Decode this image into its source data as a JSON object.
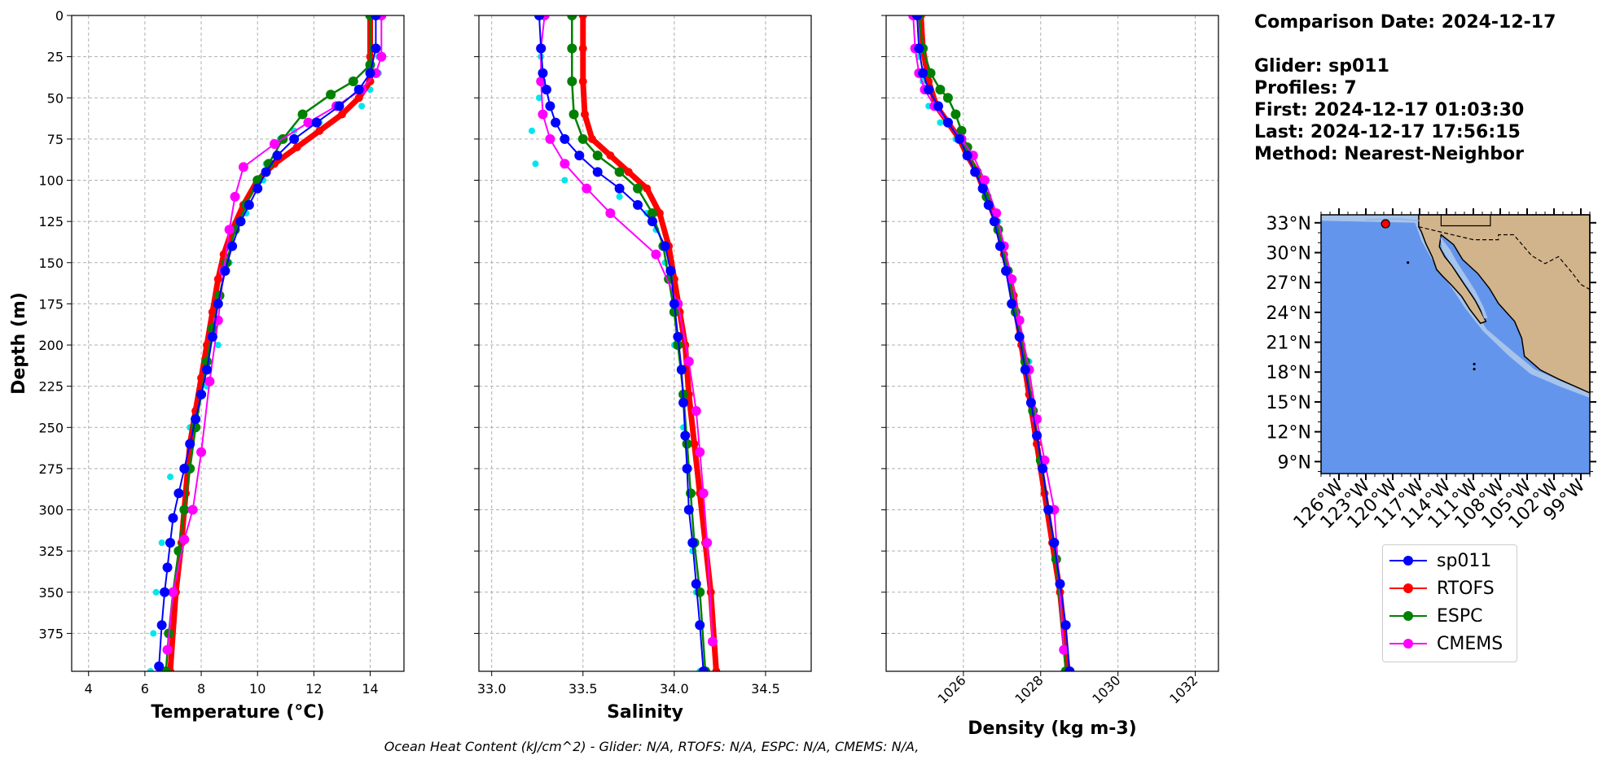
{
  "chart_data": [
    {
      "type": "line",
      "xlabel": "Temperature (°C)",
      "ylabel": "Depth (m)",
      "xlim": [
        3.4,
        15.2
      ],
      "ylim": [
        0,
        398
      ],
      "xticks": [
        "4",
        "6",
        "8",
        "10",
        "12",
        "14"
      ],
      "yticks": [
        "0",
        "25",
        "50",
        "75",
        "100",
        "125",
        "150",
        "175",
        "200",
        "225",
        "250",
        "275",
        "300",
        "325",
        "350",
        "375"
      ],
      "grid": true,
      "series": [
        {
          "name": "sp011",
          "color": "#0000ff",
          "x": [
            14.2,
            14.2,
            14.0,
            13.6,
            12.9,
            12.1,
            11.3,
            10.7,
            10.3,
            10.0,
            9.7,
            9.4,
            9.1,
            8.85,
            8.6,
            8.4,
            8.2,
            8.0,
            7.8,
            7.6,
            7.4,
            7.2,
            7.0,
            6.9,
            6.8,
            6.7,
            6.6,
            6.5
          ],
          "y": [
            0,
            20,
            35,
            45,
            55,
            65,
            75,
            85,
            95,
            105,
            115,
            125,
            140,
            155,
            175,
            195,
            215,
            230,
            245,
            260,
            275,
            290,
            305,
            320,
            335,
            350,
            370,
            395
          ]
        },
        {
          "name": "RTOFS",
          "color": "#ff0000",
          "x": [
            14.0,
            14.0,
            14.0,
            13.6,
            13.0,
            12.2,
            11.4,
            10.6,
            10.0,
            9.5,
            9.1,
            8.8,
            8.6,
            8.4,
            8.2,
            8.0,
            7.8,
            7.6,
            7.45,
            7.3,
            7.1,
            6.9
          ],
          "y": [
            0,
            25,
            40,
            50,
            60,
            70,
            80,
            90,
            100,
            115,
            130,
            145,
            160,
            180,
            200,
            220,
            240,
            260,
            290,
            320,
            350,
            398
          ]
        },
        {
          "name": "ESPC",
          "color": "#008000",
          "x": [
            14.0,
            14.0,
            13.4,
            12.6,
            11.6,
            10.9,
            10.4,
            10.0,
            9.6,
            9.2,
            8.9,
            8.65,
            8.4,
            8.2,
            8.0,
            7.8,
            7.6,
            7.4,
            7.2,
            7.0,
            6.85,
            6.75
          ],
          "y": [
            0,
            30,
            40,
            48,
            60,
            75,
            90,
            100,
            115,
            130,
            150,
            170,
            190,
            210,
            230,
            250,
            275,
            300,
            325,
            350,
            375,
            398
          ]
        },
        {
          "name": "CMEMS",
          "color": "#ff00ff",
          "x": [
            14.4,
            14.4,
            14.2,
            13.7,
            12.8,
            11.8,
            10.6,
            9.5,
            9.2,
            9.0,
            8.8,
            8.6,
            8.3,
            8.0,
            7.7,
            7.4,
            7.0,
            6.8
          ],
          "y": [
            0,
            25,
            35,
            45,
            55,
            65,
            78,
            92,
            110,
            130,
            155,
            185,
            222,
            265,
            300,
            318,
            350,
            385
          ]
        },
        {
          "name": "",
          "color": "#00e5ee",
          "dotted": true,
          "x": [
            14.3,
            14.3,
            14.3,
            14.0,
            13.7,
            12.2,
            11.3,
            10.8,
            10.3,
            10.2,
            9.6,
            9.0,
            8.6,
            8.2,
            7.6,
            6.9,
            6.6,
            6.4,
            6.3,
            6.2
          ],
          "y": [
            0,
            25,
            35,
            45,
            55,
            65,
            70,
            75,
            90,
            100,
            120,
            150,
            200,
            225,
            250,
            280,
            320,
            350,
            375,
            398
          ]
        }
      ]
    },
    {
      "type": "line",
      "xlabel": "Salinity",
      "ylabel": "",
      "xlim": [
        32.93,
        34.75
      ],
      "ylim": [
        0,
        398
      ],
      "xticks": [
        "33.0",
        "33.5",
        "34.0",
        "34.5"
      ],
      "grid": true,
      "series": [
        {
          "name": "sp011",
          "color": "#0000ff",
          "x": [
            33.26,
            33.27,
            33.28,
            33.3,
            33.32,
            33.35,
            33.4,
            33.48,
            33.58,
            33.7,
            33.8,
            33.88,
            33.95,
            33.98,
            34.0,
            34.02,
            34.04,
            34.05,
            34.06,
            34.07,
            34.08,
            34.1,
            34.12,
            34.14,
            34.16
          ],
          "y": [
            0,
            20,
            35,
            45,
            55,
            65,
            75,
            85,
            95,
            105,
            115,
            125,
            140,
            155,
            175,
            195,
            215,
            235,
            255,
            275,
            300,
            320,
            345,
            370,
            398
          ]
        },
        {
          "name": "RTOFS",
          "color": "#ff0000",
          "x": [
            33.5,
            33.5,
            33.5,
            33.51,
            33.55,
            33.65,
            33.75,
            33.85,
            33.92,
            33.97,
            34.0,
            34.03,
            34.06,
            34.08,
            34.11,
            34.14,
            34.17,
            34.2,
            34.23
          ],
          "y": [
            0,
            20,
            40,
            60,
            75,
            85,
            95,
            105,
            120,
            140,
            160,
            180,
            200,
            230,
            260,
            290,
            320,
            350,
            398
          ]
        },
        {
          "name": "ESPC",
          "color": "#008000",
          "x": [
            33.44,
            33.44,
            33.44,
            33.45,
            33.5,
            33.58,
            33.7,
            33.8,
            33.88,
            33.94,
            33.97,
            34.0,
            34.02,
            34.05,
            34.07,
            34.09,
            34.11,
            34.14,
            34.17
          ],
          "y": [
            0,
            20,
            40,
            60,
            75,
            85,
            95,
            105,
            120,
            140,
            160,
            180,
            200,
            230,
            260,
            290,
            320,
            350,
            398
          ]
        },
        {
          "name": "CMEMS",
          "color": "#ff00ff",
          "x": [
            33.29,
            33.27,
            33.27,
            33.28,
            33.32,
            33.4,
            33.52,
            33.65,
            33.9,
            34.02,
            34.08,
            34.12,
            34.14,
            34.16,
            34.18,
            34.21
          ],
          "y": [
            0,
            20,
            40,
            60,
            75,
            90,
            105,
            120,
            145,
            175,
            210,
            240,
            265,
            290,
            320,
            380
          ]
        },
        {
          "name": "",
          "color": "#00e5ee",
          "dotted": true,
          "x": [
            33.27,
            33.27,
            33.26,
            33.22,
            33.24,
            33.4,
            33.7,
            33.85,
            33.9,
            33.95,
            34.0,
            34.05,
            34.08,
            34.08,
            34.1,
            34.12,
            34.14
          ],
          "y": [
            0,
            25,
            50,
            70,
            90,
            100,
            110,
            120,
            130,
            150,
            200,
            250,
            275,
            300,
            325,
            350,
            398
          ]
        }
      ]
    },
    {
      "type": "line",
      "xlabel": "Density (kg m-3)",
      "ylabel": "",
      "xlim": [
        1024.0,
        1032.6
      ],
      "ylim": [
        0,
        398
      ],
      "xticks": [
        "1026",
        "1028",
        "1030",
        "1032"
      ],
      "grid": true,
      "series": [
        {
          "name": "sp011",
          "color": "#0000ff",
          "x": [
            1024.8,
            1024.85,
            1024.95,
            1025.1,
            1025.35,
            1025.6,
            1025.9,
            1026.1,
            1026.3,
            1026.5,
            1026.65,
            1026.8,
            1026.95,
            1027.1,
            1027.25,
            1027.45,
            1027.6,
            1027.75,
            1027.9,
            1028.05,
            1028.2,
            1028.35,
            1028.5,
            1028.65,
            1028.75
          ],
          "y": [
            0,
            20,
            35,
            45,
            55,
            65,
            75,
            85,
            95,
            105,
            115,
            125,
            140,
            155,
            175,
            195,
            215,
            235,
            255,
            275,
            300,
            320,
            345,
            370,
            398
          ]
        },
        {
          "name": "RTOFS",
          "color": "#ff0000",
          "x": [
            1024.9,
            1024.95,
            1025.1,
            1025.3,
            1025.6,
            1025.9,
            1026.1,
            1026.35,
            1026.6,
            1026.85,
            1027.05,
            1027.3,
            1027.5,
            1027.7,
            1027.9,
            1028.1,
            1028.3,
            1028.5,
            1028.7
          ],
          "y": [
            0,
            20,
            40,
            55,
            65,
            75,
            85,
            95,
            110,
            125,
            145,
            170,
            200,
            230,
            260,
            290,
            320,
            350,
            398
          ]
        },
        {
          "name": "ESPC",
          "color": "#008000",
          "x": [
            1024.85,
            1024.95,
            1025.15,
            1025.4,
            1025.6,
            1025.8,
            1025.95,
            1026.1,
            1026.35,
            1026.6,
            1026.9,
            1027.15,
            1027.35,
            1027.6,
            1027.8,
            1028.0,
            1028.2,
            1028.4,
            1028.65
          ],
          "y": [
            0,
            20,
            35,
            45,
            50,
            60,
            70,
            80,
            95,
            110,
            130,
            155,
            180,
            210,
            240,
            270,
            300,
            330,
            398
          ]
        },
        {
          "name": "CMEMS",
          "color": "#ff00ff",
          "x": [
            1024.7,
            1024.75,
            1024.85,
            1025.0,
            1025.25,
            1025.6,
            1025.95,
            1026.25,
            1026.55,
            1026.85,
            1027.05,
            1027.25,
            1027.45,
            1027.7,
            1027.9,
            1028.1,
            1028.35,
            1028.6
          ],
          "y": [
            0,
            20,
            35,
            45,
            55,
            65,
            75,
            85,
            100,
            120,
            140,
            160,
            185,
            215,
            245,
            270,
            300,
            385
          ]
        },
        {
          "name": "",
          "color": "#00e5ee",
          "dotted": true,
          "x": [
            1024.8,
            1024.85,
            1024.95,
            1025.1,
            1025.4,
            1025.8,
            1026.1,
            1026.5,
            1026.9,
            1027.3,
            1027.7,
            1028.1,
            1028.4,
            1028.7
          ],
          "y": [
            0,
            25,
            40,
            55,
            65,
            75,
            85,
            100,
            125,
            160,
            210,
            270,
            330,
            398
          ]
        }
      ]
    }
  ],
  "info": {
    "comparison": "Comparison Date: 2024-12-17",
    "glider": "Glider: sp011",
    "profiles": "Profiles: 7",
    "first": "First: 2024-12-17 01:03:30",
    "last": "Last: 2024-12-17 17:56:15",
    "method": "Method: Nearest-Neighbor"
  },
  "map": {
    "lat_labels": [
      "33°N",
      "30°N",
      "27°N",
      "24°N",
      "21°N",
      "18°N",
      "15°N",
      "12°N",
      "9°N"
    ],
    "lon_labels": [
      "126°W",
      "123°W",
      "120°W",
      "117°W",
      "114°W",
      "111°W",
      "108°W",
      "105°W",
      "102°W",
      "99°W"
    ],
    "ocean_color": "#6495ed",
    "land_color": "#d2b48c",
    "shelf_color": "#a6c3ea",
    "glider_marker_color": "#ff0000",
    "glider_lon": -120.8,
    "glider_lat": 32.9
  },
  "legend": {
    "items": [
      {
        "label": "sp011",
        "color": "#0000ff"
      },
      {
        "label": "RTOFS",
        "color": "#ff0000"
      },
      {
        "label": "ESPC",
        "color": "#008000"
      },
      {
        "label": "CMEMS",
        "color": "#ff00ff"
      }
    ]
  },
  "footer": "Ocean Heat Content (kJ/cm^2) - Glider: N/A,  RTOFS: N/A,  ESPC: N/A,  CMEMS: N/A,"
}
